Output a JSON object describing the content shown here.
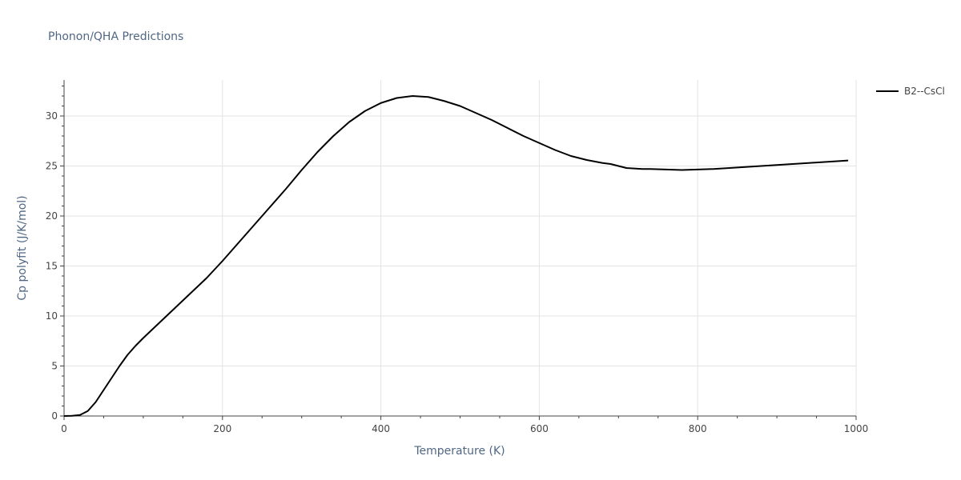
{
  "chart_data": {
    "type": "line",
    "title": "Phonon/QHA Predictions",
    "xlabel": "Temperature (K)",
    "ylabel": "Cp polyfit (J/K/mol)",
    "xlim": [
      0,
      1000
    ],
    "ylim": [
      0,
      33.6
    ],
    "x_ticks": [
      0,
      200,
      400,
      600,
      800,
      1000
    ],
    "y_ticks": [
      0,
      5,
      10,
      15,
      20,
      25,
      30
    ],
    "grid": true,
    "legend_position": "top-right",
    "series": [
      {
        "name": "B2--CsCl",
        "color": "#000000",
        "x": [
          0,
          10,
          20,
          30,
          40,
          50,
          60,
          70,
          80,
          90,
          100,
          120,
          140,
          160,
          180,
          200,
          220,
          240,
          260,
          280,
          300,
          320,
          340,
          360,
          380,
          400,
          420,
          440,
          460,
          480,
          500,
          520,
          540,
          560,
          580,
          600,
          620,
          640,
          660,
          680,
          690,
          700,
          710,
          720,
          730,
          740,
          760,
          780,
          800,
          820,
          840,
          860,
          880,
          900,
          920,
          940,
          960,
          980,
          990
        ],
        "y": [
          0,
          0.02,
          0.1,
          0.5,
          1.4,
          2.6,
          3.8,
          5.0,
          6.1,
          7.0,
          7.8,
          9.3,
          10.8,
          12.3,
          13.8,
          15.5,
          17.3,
          19.1,
          20.9,
          22.7,
          24.6,
          26.4,
          28.0,
          29.4,
          30.5,
          31.3,
          31.8,
          32.0,
          31.9,
          31.5,
          31.0,
          30.3,
          29.6,
          28.8,
          28.0,
          27.3,
          26.6,
          26.0,
          25.6,
          25.3,
          25.2,
          25.0,
          24.8,
          24.75,
          24.7,
          24.7,
          24.65,
          24.6,
          24.65,
          24.7,
          24.8,
          24.9,
          25.0,
          25.1,
          25.2,
          25.3,
          25.4,
          25.5,
          25.55
        ]
      }
    ]
  }
}
